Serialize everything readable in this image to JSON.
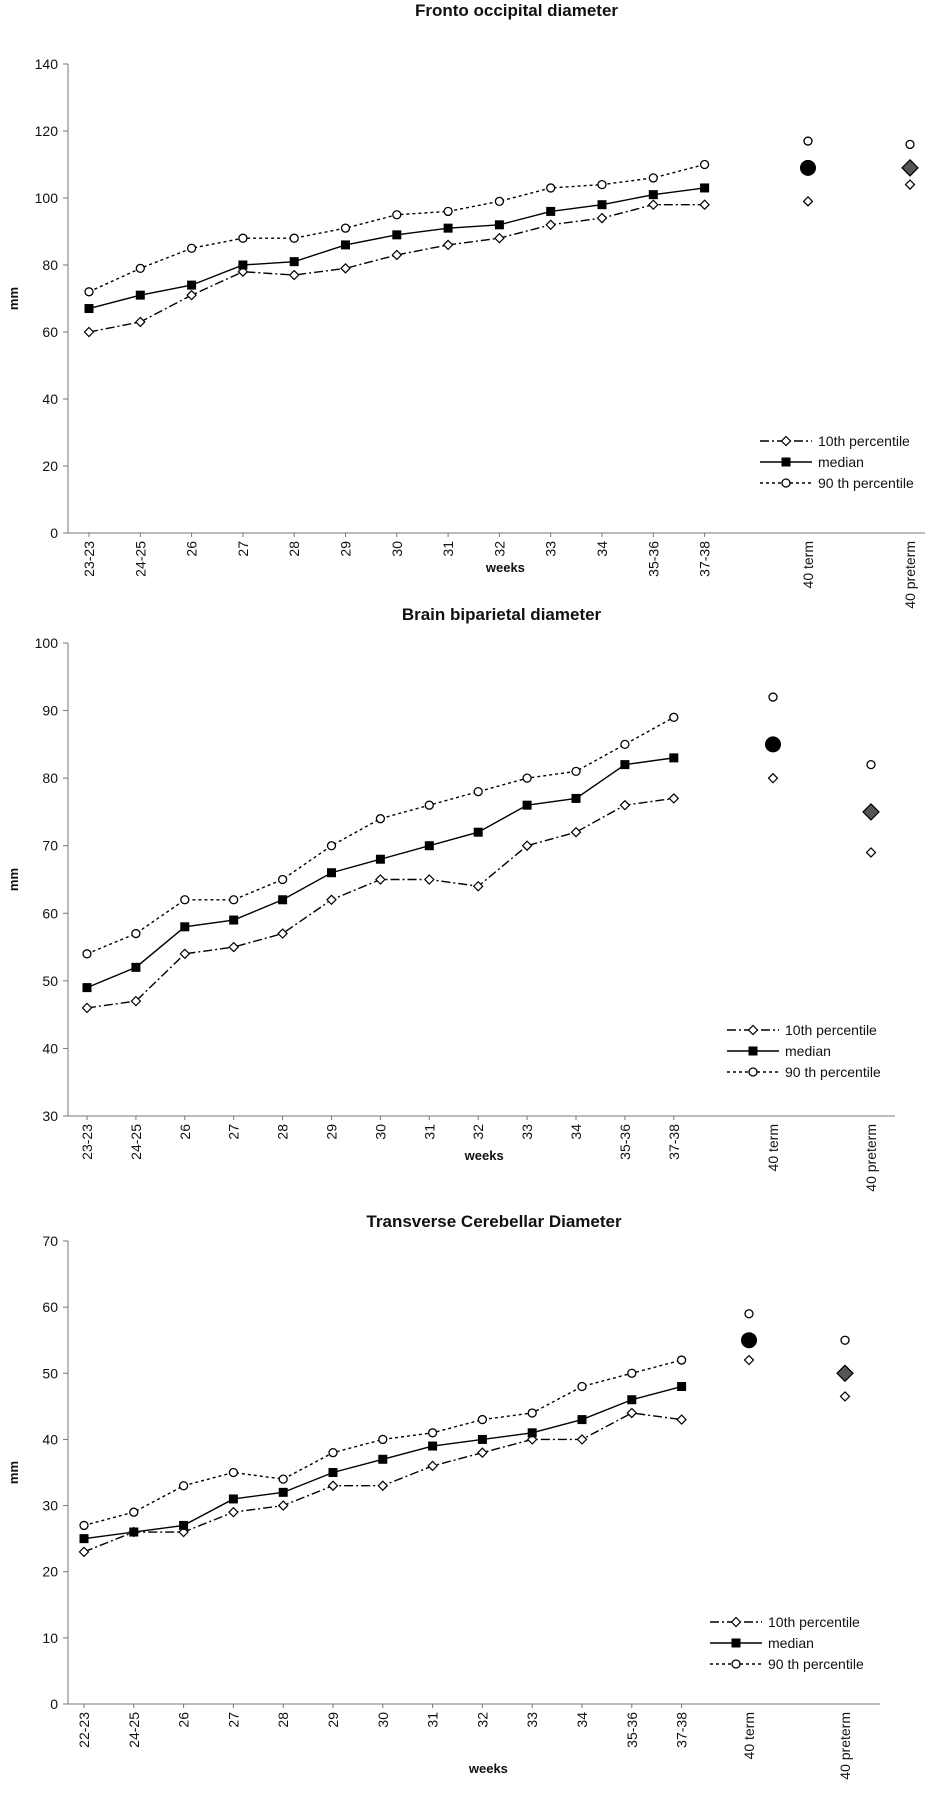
{
  "charts": [
    {
      "title": "Fronto occipital diameter",
      "xlabel": "weeks",
      "ylabel": "mm",
      "ylim": [
        0,
        140
      ],
      "ystep": 20,
      "categories": [
        "23-23",
        "24-25",
        "26",
        "27",
        "28",
        "29",
        "30",
        "31",
        "32",
        "33",
        "34",
        "35-36",
        "37-38"
      ],
      "p10": [
        60,
        63,
        71,
        78,
        77,
        79,
        83,
        86,
        88,
        92,
        94,
        98,
        98
      ],
      "median": [
        67,
        71,
        74,
        80,
        81,
        86,
        89,
        91,
        92,
        96,
        98,
        101,
        103
      ],
      "p90": [
        72,
        79,
        85,
        88,
        88,
        91,
        95,
        96,
        99,
        103,
        104,
        106,
        110
      ],
      "extra": [
        {
          "label": "40 term",
          "p90": 117,
          "median": 109,
          "p10": 99
        },
        {
          "label": "40 preterm",
          "p90": 116,
          "median": 109,
          "p10": 104
        }
      ]
    },
    {
      "title": "Brain biparietal diameter",
      "xlabel": "weeks",
      "ylabel": "mm",
      "ylim": [
        30,
        100
      ],
      "ystep": 10,
      "categories": [
        "23-23",
        "24-25",
        "26",
        "27",
        "28",
        "29",
        "30",
        "31",
        "32",
        "33",
        "34",
        "35-36",
        "37-38"
      ],
      "p10": [
        46,
        47,
        54,
        55,
        57,
        62,
        65,
        65,
        64,
        70,
        72,
        76,
        77
      ],
      "median": [
        49,
        52,
        58,
        59,
        62,
        66,
        68,
        70,
        72,
        76,
        77,
        82,
        83
      ],
      "p90": [
        54,
        57,
        62,
        62,
        65,
        70,
        74,
        76,
        78,
        80,
        81,
        85,
        89
      ],
      "extra": [
        {
          "label": "40 term",
          "p90": 92,
          "median": 85,
          "p10": 80
        },
        {
          "label": "40 preterm",
          "p90": 82,
          "median": 75,
          "p10": 69
        }
      ]
    },
    {
      "title": "Transverse Cerebellar Diameter",
      "xlabel": "weeks",
      "ylabel": "mm",
      "ylim": [
        0,
        70
      ],
      "ystep": 10,
      "categories": [
        "22-23",
        "24-25",
        "26",
        "27",
        "28",
        "29",
        "30",
        "31",
        "32",
        "33",
        "34",
        "35-36",
        "37-38"
      ],
      "p10": [
        23,
        26,
        26,
        29,
        30,
        33,
        33,
        36,
        38,
        40,
        40,
        44,
        43
      ],
      "median": [
        25,
        26,
        27,
        31,
        32,
        35,
        37,
        39,
        40,
        41,
        43,
        46,
        48
      ],
      "p90": [
        27,
        29,
        33,
        35,
        34,
        38,
        40,
        41,
        43,
        44,
        48,
        50,
        52
      ],
      "extra": [
        {
          "label": "40 term",
          "p90": 59,
          "median": 55,
          "p10": 52
        },
        {
          "label": "40 preterm",
          "p90": 55,
          "median": 50,
          "p10": 46.5
        }
      ]
    }
  ],
  "legend": {
    "p10": "10th percentile",
    "median": "median",
    "p90": "90 th percentile"
  },
  "colors": {
    "term_marker": "#000000",
    "preterm_marker": "#555555",
    "line": "#000000"
  },
  "chart_data": [
    {
      "type": "line",
      "title": "Fronto occipital diameter",
      "xlabel": "weeks",
      "ylabel": "mm",
      "ylim": [
        0,
        140
      ],
      "categories": [
        "23-23",
        "24-25",
        "26",
        "27",
        "28",
        "29",
        "30",
        "31",
        "32",
        "33",
        "34",
        "35-36",
        "37-38",
        "40 term",
        "40 preterm"
      ],
      "series": [
        {
          "name": "10th percentile",
          "values": [
            60,
            63,
            71,
            78,
            77,
            79,
            83,
            86,
            88,
            92,
            94,
            98,
            98,
            99,
            104
          ]
        },
        {
          "name": "median",
          "values": [
            67,
            71,
            74,
            80,
            81,
            86,
            89,
            91,
            92,
            96,
            98,
            101,
            103,
            109,
            109
          ]
        },
        {
          "name": "90 th percentile",
          "values": [
            72,
            79,
            85,
            88,
            88,
            91,
            95,
            96,
            99,
            103,
            104,
            106,
            110,
            117,
            116
          ]
        }
      ],
      "grid": false,
      "legend": "bottom-right"
    },
    {
      "type": "line",
      "title": "Brain biparietal diameter",
      "xlabel": "weeks",
      "ylabel": "mm",
      "ylim": [
        30,
        100
      ],
      "categories": [
        "23-23",
        "24-25",
        "26",
        "27",
        "28",
        "29",
        "30",
        "31",
        "32",
        "33",
        "34",
        "35-36",
        "37-38",
        "40 term",
        "40 preterm"
      ],
      "series": [
        {
          "name": "10th percentile",
          "values": [
            46,
            47,
            54,
            55,
            57,
            62,
            65,
            65,
            64,
            70,
            72,
            76,
            77,
            80,
            69
          ]
        },
        {
          "name": "median",
          "values": [
            49,
            52,
            58,
            59,
            62,
            66,
            68,
            70,
            72,
            76,
            77,
            82,
            83,
            85,
            75
          ]
        },
        {
          "name": "90 th percentile",
          "values": [
            54,
            57,
            62,
            62,
            65,
            70,
            74,
            76,
            78,
            80,
            81,
            85,
            89,
            92,
            82
          ]
        }
      ],
      "grid": false,
      "legend": "bottom-right"
    },
    {
      "type": "line",
      "title": "Transverse Cerebellar Diameter",
      "xlabel": "weeks",
      "ylabel": "mm",
      "ylim": [
        0,
        70
      ],
      "categories": [
        "22-23",
        "24-25",
        "26",
        "27",
        "28",
        "29",
        "30",
        "31",
        "32",
        "33",
        "34",
        "35-36",
        "37-38",
        "40 term",
        "40 preterm"
      ],
      "series": [
        {
          "name": "10th percentile",
          "values": [
            23,
            26,
            26,
            29,
            30,
            33,
            33,
            36,
            38,
            40,
            40,
            44,
            43,
            52,
            46.5
          ]
        },
        {
          "name": "median",
          "values": [
            25,
            26,
            27,
            31,
            32,
            35,
            37,
            39,
            40,
            41,
            43,
            46,
            48,
            55,
            50
          ]
        },
        {
          "name": "90 th percentile",
          "values": [
            27,
            29,
            33,
            35,
            34,
            38,
            40,
            41,
            43,
            44,
            48,
            50,
            52,
            59,
            55
          ]
        }
      ],
      "grid": false,
      "legend": "bottom-right"
    }
  ]
}
